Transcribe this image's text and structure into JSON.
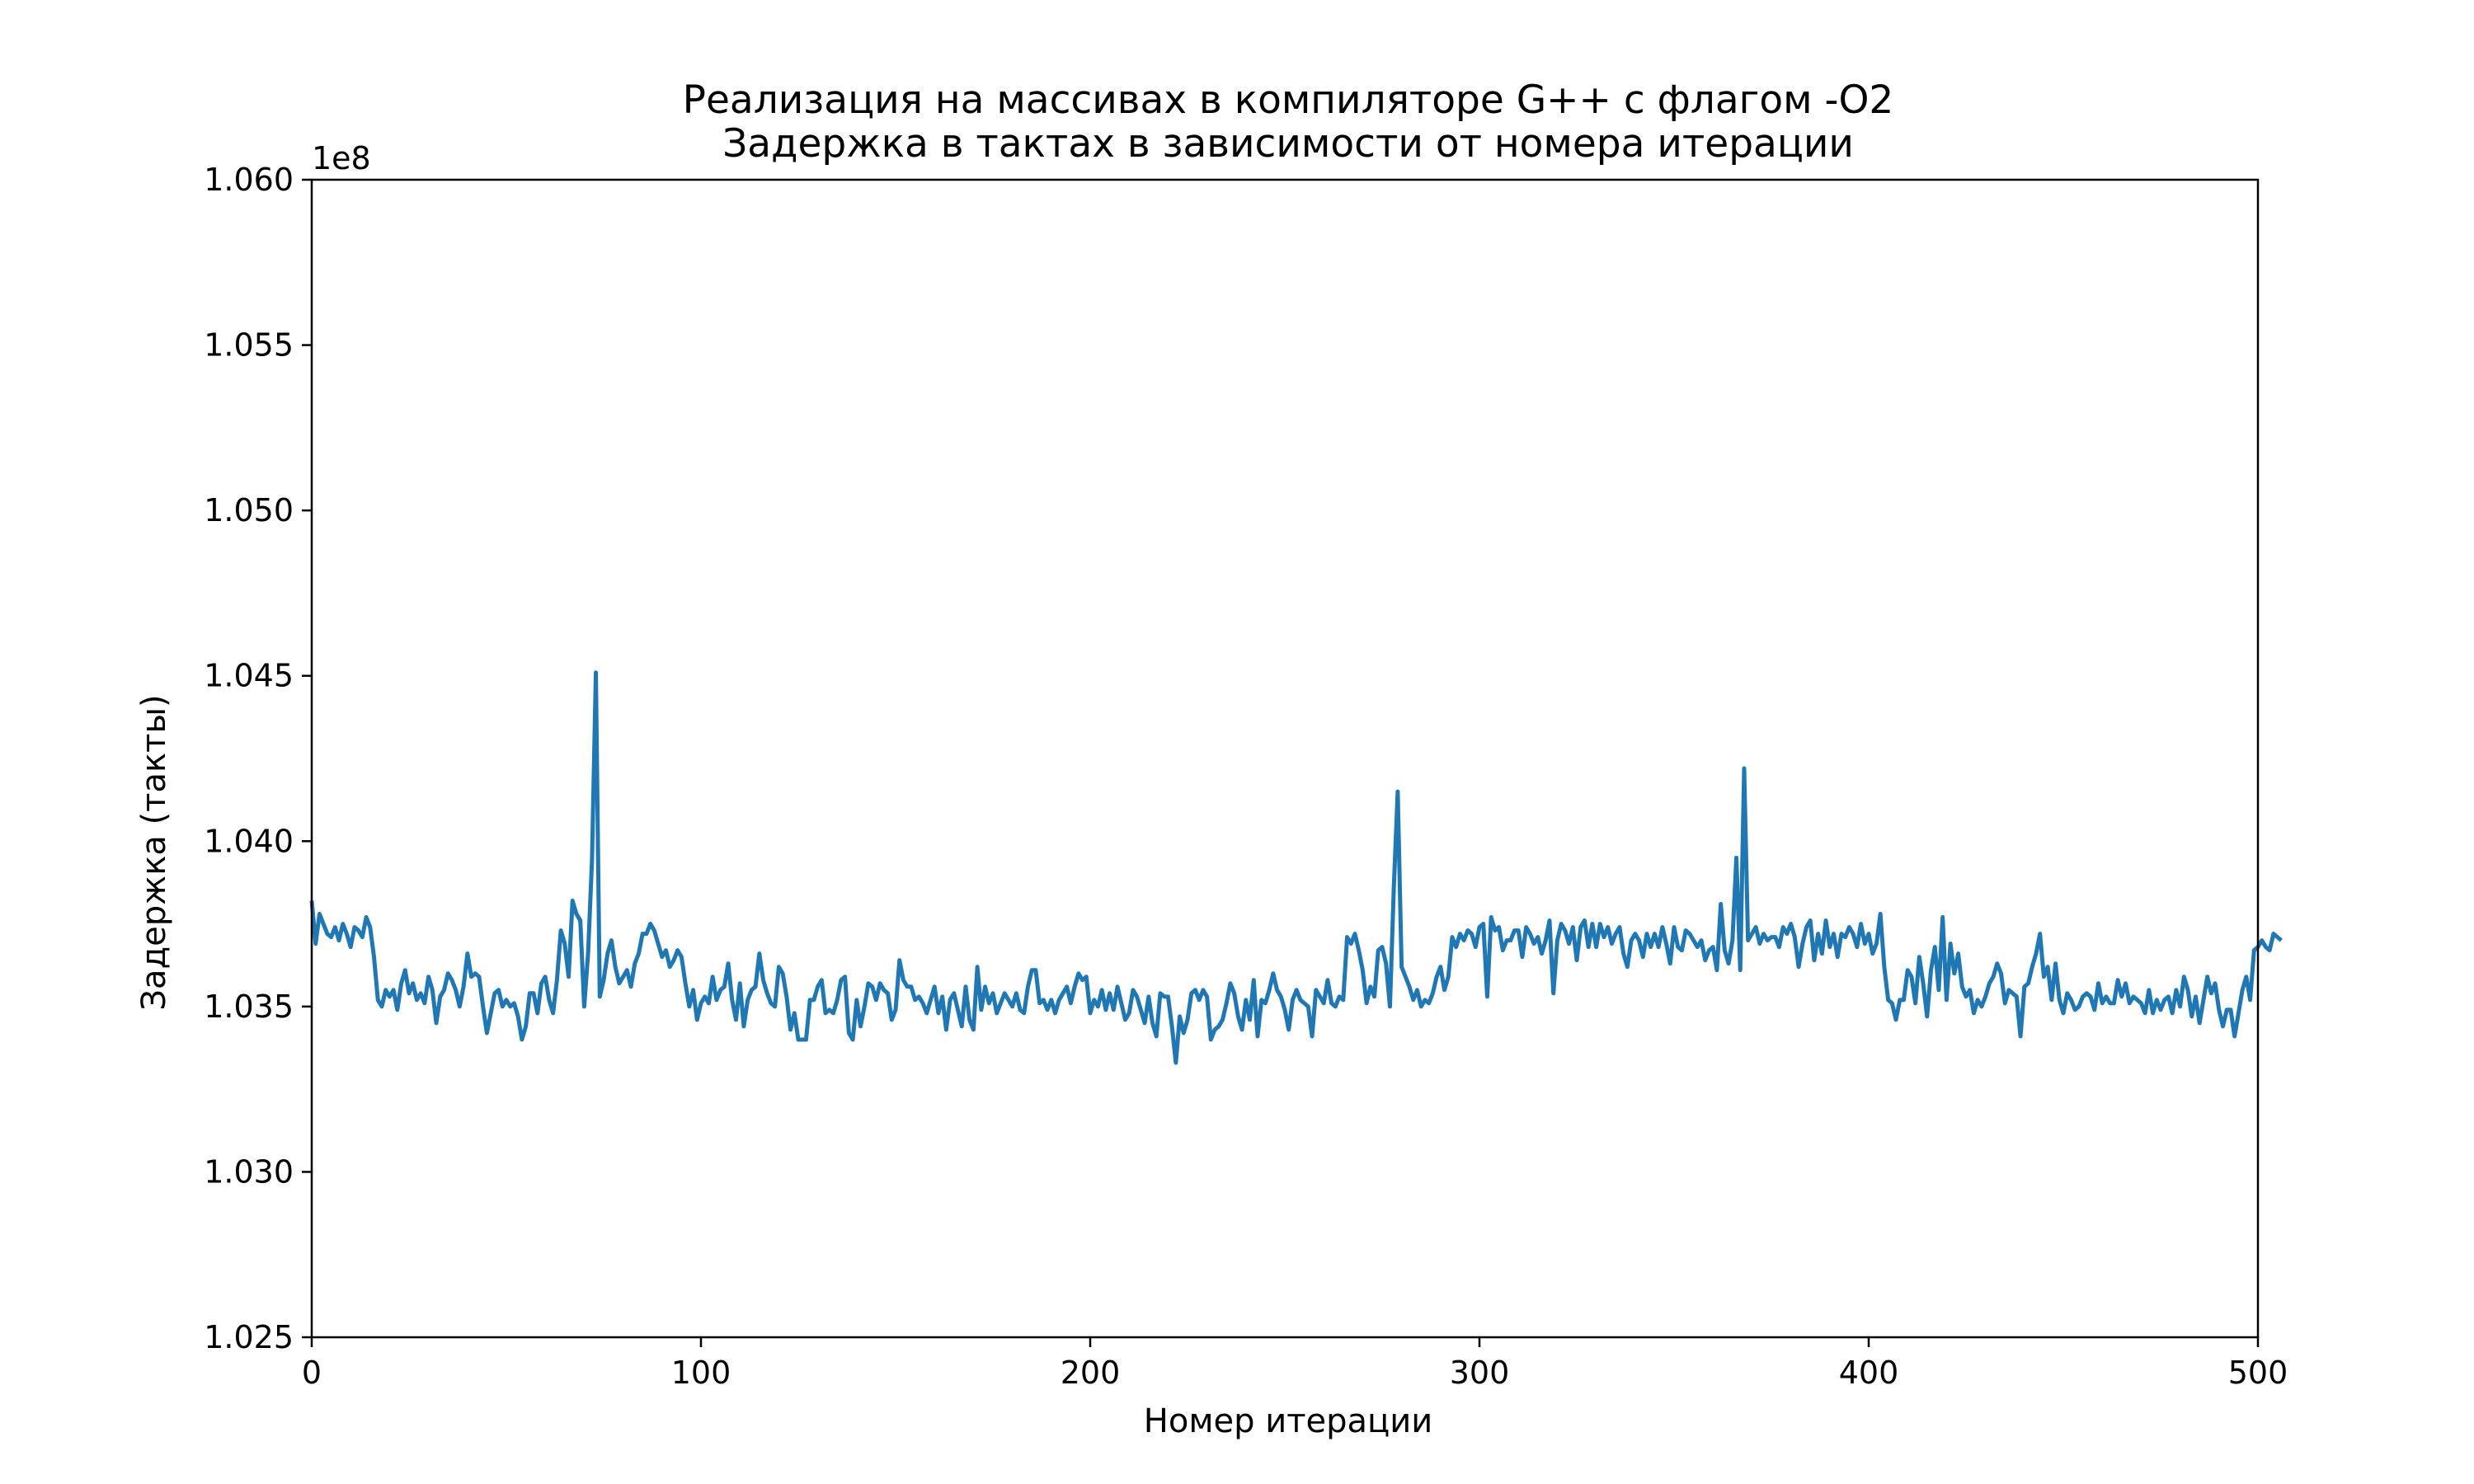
{
  "chart_data": {
    "type": "line",
    "title": "Реализация на массивах в компиляторе G++ с флагом -O2",
    "subtitle": "Задержка в тактах в зависимости от номера итерации",
    "xlabel": "Номер итерации",
    "ylabel": "Задержка (такты)",
    "y_offset_label": "1e8",
    "xlim": [
      0,
      500
    ],
    "ylim": [
      1.025,
      1.06
    ],
    "y_scale_note_value": 100000000,
    "x_ticks": [
      0,
      100,
      200,
      300,
      400,
      500
    ],
    "x_tick_labels": [
      "0",
      "100",
      "200",
      "300",
      "400",
      "500"
    ],
    "y_ticks": [
      1.025,
      1.03,
      1.035,
      1.04,
      1.045,
      1.05,
      1.055,
      1.06
    ],
    "y_tick_labels": [
      "1.025",
      "1.030",
      "1.035",
      "1.040",
      "1.045",
      "1.050",
      "1.055",
      "1.060"
    ],
    "grid": false,
    "legend": "none",
    "series": [
      {
        "color": "#1f77b4",
        "x_start": 0,
        "x_step": 1,
        "values": [
          1.0382,
          1.0369,
          1.0378,
          1.0375,
          1.0372,
          1.0371,
          1.0374,
          1.037,
          1.0375,
          1.0372,
          1.0368,
          1.0374,
          1.0373,
          1.0371,
          1.0377,
          1.0374,
          1.0365,
          1.0352,
          1.035,
          1.0355,
          1.0353,
          1.0355,
          1.0349,
          1.0357,
          1.0361,
          1.0354,
          1.0357,
          1.0352,
          1.0354,
          1.0351,
          1.0359,
          1.0355,
          1.0345,
          1.0353,
          1.0355,
          1.036,
          1.0358,
          1.0355,
          1.035,
          1.0356,
          1.0366,
          1.0359,
          1.036,
          1.0359,
          1.035,
          1.0342,
          1.0348,
          1.0354,
          1.0355,
          1.035,
          1.0352,
          1.035,
          1.0351,
          1.0347,
          1.034,
          1.0344,
          1.0354,
          1.0354,
          1.0348,
          1.0357,
          1.0359,
          1.0352,
          1.0348,
          1.0358,
          1.0373,
          1.0369,
          1.0359,
          1.0382,
          1.0378,
          1.0376,
          1.035,
          1.0366,
          1.0394,
          1.0451,
          1.0353,
          1.0358,
          1.0366,
          1.037,
          1.0362,
          1.0357,
          1.0359,
          1.0361,
          1.0356,
          1.0363,
          1.0366,
          1.0372,
          1.0372,
          1.0375,
          1.0373,
          1.0369,
          1.0365,
          1.0367,
          1.0362,
          1.0364,
          1.0367,
          1.0365,
          1.0357,
          1.035,
          1.0355,
          1.0346,
          1.0351,
          1.0353,
          1.0351,
          1.0359,
          1.0352,
          1.0355,
          1.0356,
          1.0363,
          1.0352,
          1.0346,
          1.0357,
          1.0344,
          1.0352,
          1.0355,
          1.0356,
          1.0366,
          1.0358,
          1.0354,
          1.0351,
          1.035,
          1.0362,
          1.036,
          1.0353,
          1.0343,
          1.0348,
          1.034,
          1.034,
          1.034,
          1.0352,
          1.0352,
          1.0356,
          1.0358,
          1.0348,
          1.0349,
          1.0348,
          1.0352,
          1.0358,
          1.0359,
          1.0342,
          1.034,
          1.0352,
          1.0344,
          1.035,
          1.0357,
          1.0356,
          1.0352,
          1.0357,
          1.0355,
          1.0354,
          1.0346,
          1.0349,
          1.0364,
          1.0358,
          1.0356,
          1.0356,
          1.0352,
          1.0353,
          1.0351,
          1.0348,
          1.0352,
          1.0356,
          1.0348,
          1.0353,
          1.0343,
          1.0352,
          1.0354,
          1.0349,
          1.0344,
          1.0356,
          1.0346,
          1.0343,
          1.0362,
          1.0349,
          1.0356,
          1.0351,
          1.0354,
          1.0348,
          1.0351,
          1.0354,
          1.0352,
          1.035,
          1.0354,
          1.0349,
          1.0348,
          1.0356,
          1.0361,
          1.0361,
          1.0351,
          1.0352,
          1.0349,
          1.0352,
          1.0348,
          1.0352,
          1.0354,
          1.0356,
          1.0351,
          1.0356,
          1.036,
          1.0358,
          1.0359,
          1.0348,
          1.0352,
          1.035,
          1.0355,
          1.0349,
          1.0354,
          1.0349,
          1.0356,
          1.0351,
          1.0346,
          1.0348,
          1.0355,
          1.0353,
          1.0349,
          1.0345,
          1.0353,
          1.0345,
          1.0341,
          1.0354,
          1.0353,
          1.0353,
          1.0344,
          1.0333,
          1.0347,
          1.0342,
          1.0346,
          1.0354,
          1.0355,
          1.0352,
          1.0355,
          1.0353,
          1.034,
          1.0343,
          1.0344,
          1.0346,
          1.0351,
          1.0357,
          1.0354,
          1.0347,
          1.0343,
          1.0352,
          1.0346,
          1.0358,
          1.0341,
          1.0352,
          1.0351,
          1.0355,
          1.036,
          1.0355,
          1.0353,
          1.0349,
          1.0343,
          1.0352,
          1.0355,
          1.0352,
          1.0351,
          1.035,
          1.0341,
          1.0355,
          1.0353,
          1.0351,
          1.0358,
          1.0351,
          1.035,
          1.0353,
          1.0352,
          1.0371,
          1.0369,
          1.0372,
          1.0367,
          1.0361,
          1.0351,
          1.0356,
          1.0353,
          1.0367,
          1.0368,
          1.0363,
          1.035,
          1.0386,
          1.0415,
          1.0362,
          1.0359,
          1.0356,
          1.0352,
          1.0355,
          1.035,
          1.0352,
          1.0351,
          1.0354,
          1.0359,
          1.0362,
          1.0355,
          1.0359,
          1.0371,
          1.0368,
          1.0372,
          1.037,
          1.0373,
          1.0372,
          1.0368,
          1.0374,
          1.0375,
          1.0353,
          1.0377,
          1.0373,
          1.0374,
          1.0367,
          1.037,
          1.037,
          1.0373,
          1.0373,
          1.0365,
          1.0374,
          1.0372,
          1.0369,
          1.0371,
          1.0366,
          1.037,
          1.0376,
          1.0354,
          1.037,
          1.0375,
          1.0373,
          1.0369,
          1.0374,
          1.0364,
          1.0374,
          1.0376,
          1.0368,
          1.0375,
          1.0368,
          1.0375,
          1.0371,
          1.0374,
          1.0369,
          1.0372,
          1.0374,
          1.0366,
          1.0362,
          1.037,
          1.0372,
          1.037,
          1.0365,
          1.0372,
          1.0368,
          1.0372,
          1.0368,
          1.0374,
          1.0369,
          1.0363,
          1.0374,
          1.0368,
          1.0367,
          1.0373,
          1.0372,
          1.037,
          1.0368,
          1.037,
          1.0364,
          1.0367,
          1.0368,
          1.0361,
          1.0381,
          1.0367,
          1.0363,
          1.037,
          1.0395,
          1.0361,
          1.0422,
          1.037,
          1.0372,
          1.0374,
          1.0369,
          1.0372,
          1.037,
          1.0371,
          1.0371,
          1.0368,
          1.0374,
          1.0372,
          1.0375,
          1.0371,
          1.0362,
          1.0369,
          1.0374,
          1.0376,
          1.0364,
          1.0372,
          1.0366,
          1.0376,
          1.0368,
          1.0372,
          1.0365,
          1.0372,
          1.0371,
          1.0374,
          1.0372,
          1.0368,
          1.0375,
          1.0369,
          1.0372,
          1.0366,
          1.0369,
          1.0378,
          1.0362,
          1.0352,
          1.0351,
          1.0346,
          1.0352,
          1.0352,
          1.0361,
          1.0359,
          1.0351,
          1.0365,
          1.0357,
          1.0347,
          1.0361,
          1.0368,
          1.0355,
          1.0377,
          1.0352,
          1.0369,
          1.036,
          1.0366,
          1.0356,
          1.0353,
          1.0355,
          1.0348,
          1.0352,
          1.035,
          1.0353,
          1.0357,
          1.0359,
          1.0363,
          1.036,
          1.0351,
          1.0355,
          1.0354,
          1.0353,
          1.0341,
          1.0356,
          1.0357,
          1.0362,
          1.0366,
          1.0372,
          1.0359,
          1.0362,
          1.0352,
          1.0363,
          1.0352,
          1.0348,
          1.0354,
          1.0352,
          1.0349,
          1.035,
          1.0353,
          1.0354,
          1.0353,
          1.0349,
          1.0357,
          1.0351,
          1.0353,
          1.0351,
          1.0351,
          1.0358,
          1.0353,
          1.0357,
          1.0351,
          1.0353,
          1.0352,
          1.0351,
          1.0348,
          1.0355,
          1.0348,
          1.0352,
          1.0349,
          1.0352,
          1.0353,
          1.0348,
          1.0355,
          1.035,
          1.0359,
          1.0355,
          1.0347,
          1.0353,
          1.0345,
          1.0352,
          1.0359,
          1.0354,
          1.0357,
          1.0349,
          1.0344,
          1.0349,
          1.0349,
          1.0341,
          1.0348,
          1.0355,
          1.0359,
          1.0352,
          1.0367,
          1.0368,
          1.037,
          1.0368,
          1.0367,
          1.0372,
          1.0371,
          1.037
        ]
      }
    ]
  }
}
